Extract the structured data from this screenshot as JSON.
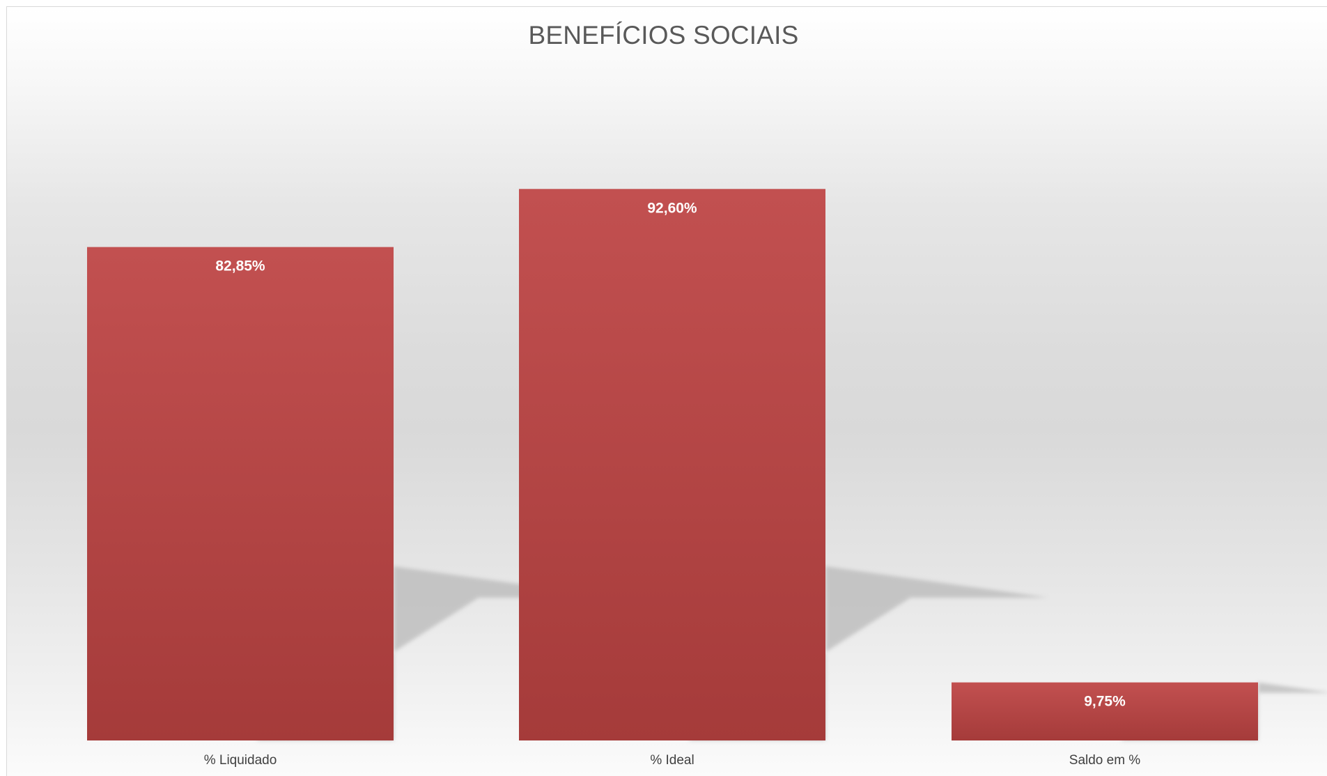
{
  "chart_data": {
    "type": "bar",
    "title": "BENEFÍCIOS SOCIAIS",
    "categories": [
      "% Liquidado",
      "% Ideal",
      "Saldo em %"
    ],
    "values": [
      82.85,
      92.6,
      9.75
    ],
    "data_labels": [
      "82,85%",
      "92,60%",
      "9,75%"
    ],
    "xlabel": "",
    "ylabel": "",
    "ylim": [
      0,
      100
    ],
    "grid": false,
    "legend": "none",
    "bar_color": "#b84444",
    "label_color": "#ffffff"
  }
}
